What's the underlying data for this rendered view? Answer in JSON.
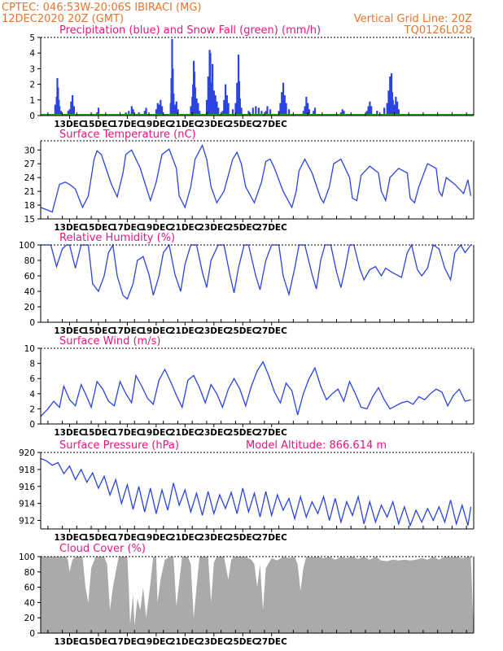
{
  "header": {
    "source_station": "CPTEC:  046:53W-20:06S  IBIRACI (MG)",
    "run_time": "12DEC2020 20Z (GMT)",
    "grid_note": "Vertical Grid Line: 20Z",
    "model": "TQ0126L028"
  },
  "dates": [
    "13DEC",
    "15DEC",
    "17DEC",
    "19DEC",
    "21DEC",
    "23DEC",
    "25DEC",
    "27DEC"
  ],
  "colors": {
    "line": "#2a44e0",
    "snow": "#1aa81a",
    "cloud": "#aaaaaa",
    "title": "#e8157f",
    "header": "#e8742c"
  },
  "chart_data": [
    {
      "id": "precip",
      "type": "bar",
      "title": "Precipitation (blue) and Snow Fall (green) (mm/h)",
      "ylim": [
        0,
        5
      ],
      "yticks": [
        0,
        1,
        2,
        3,
        4,
        5
      ],
      "x_unit": "days since start of window (12DEC 20Z = 0)",
      "bars": [
        [
          1.0,
          0.7
        ],
        [
          1.1,
          1.2
        ],
        [
          1.15,
          2.4
        ],
        [
          1.2,
          1.8
        ],
        [
          1.25,
          1.0
        ],
        [
          1.3,
          0.6
        ],
        [
          1.4,
          0.3
        ],
        [
          1.9,
          0.3
        ],
        [
          2.0,
          0.4
        ],
        [
          2.1,
          0.9
        ],
        [
          2.2,
          1.3
        ],
        [
          2.3,
          0.6
        ],
        [
          3.9,
          0.2
        ],
        [
          4.0,
          0.5
        ],
        [
          5.9,
          0.2
        ],
        [
          6.1,
          0.3
        ],
        [
          6.3,
          0.6
        ],
        [
          6.4,
          0.4
        ],
        [
          6.8,
          0.2
        ],
        [
          7.2,
          0.3
        ],
        [
          7.3,
          0.5
        ],
        [
          8.0,
          0.4
        ],
        [
          8.1,
          0.8
        ],
        [
          8.2,
          0.7
        ],
        [
          8.3,
          1.0
        ],
        [
          8.4,
          0.6
        ],
        [
          9.0,
          0.8
        ],
        [
          9.05,
          2.4
        ],
        [
          9.1,
          4.9
        ],
        [
          9.15,
          3.0
        ],
        [
          9.2,
          1.4
        ],
        [
          9.3,
          0.7
        ],
        [
          9.4,
          0.9
        ],
        [
          9.5,
          0.4
        ],
        [
          10.4,
          0.6
        ],
        [
          10.5,
          1.2
        ],
        [
          10.55,
          2.0
        ],
        [
          10.6,
          3.5
        ],
        [
          10.65,
          2.8
        ],
        [
          10.7,
          1.8
        ],
        [
          10.8,
          1.1
        ],
        [
          10.9,
          0.8
        ],
        [
          11.0,
          0.3
        ],
        [
          11.5,
          1.0
        ],
        [
          11.6,
          2.5
        ],
        [
          11.7,
          4.2
        ],
        [
          11.75,
          4.0
        ],
        [
          11.8,
          2.1
        ],
        [
          11.9,
          3.3
        ],
        [
          12.0,
          1.6
        ],
        [
          12.1,
          1.3
        ],
        [
          12.2,
          0.9
        ],
        [
          12.3,
          0.5
        ],
        [
          12.6,
          0.3
        ],
        [
          12.7,
          1.0
        ],
        [
          12.8,
          2.0
        ],
        [
          12.9,
          1.3
        ],
        [
          13.0,
          0.8
        ],
        [
          13.3,
          0.4
        ],
        [
          13.5,
          0.8
        ],
        [
          13.6,
          2.1
        ],
        [
          13.7,
          3.9
        ],
        [
          13.75,
          2.2
        ],
        [
          13.8,
          1.1
        ],
        [
          13.9,
          0.5
        ],
        [
          14.4,
          0.3
        ],
        [
          14.7,
          0.5
        ],
        [
          14.9,
          0.6
        ],
        [
          15.1,
          0.5
        ],
        [
          15.3,
          0.3
        ],
        [
          15.6,
          0.3
        ],
        [
          15.7,
          0.6
        ],
        [
          15.9,
          0.4
        ],
        [
          16.5,
          0.3
        ],
        [
          16.6,
          0.8
        ],
        [
          16.7,
          1.5
        ],
        [
          16.8,
          2.1
        ],
        [
          16.9,
          1.3
        ],
        [
          17.0,
          0.8
        ],
        [
          17.2,
          0.4
        ],
        [
          18.2,
          0.3
        ],
        [
          18.3,
          0.6
        ],
        [
          18.4,
          1.2
        ],
        [
          18.5,
          0.8
        ],
        [
          18.6,
          0.4
        ],
        [
          18.9,
          0.3
        ],
        [
          19.0,
          0.5
        ],
        [
          20.8,
          0.2
        ],
        [
          20.9,
          0.4
        ],
        [
          21.0,
          0.3
        ],
        [
          22.6,
          0.3
        ],
        [
          22.7,
          0.6
        ],
        [
          22.8,
          0.9
        ],
        [
          22.9,
          0.6
        ],
        [
          23.3,
          0.3
        ],
        [
          23.8,
          0.5
        ],
        [
          24.0,
          0.8
        ],
        [
          24.1,
          1.6
        ],
        [
          24.2,
          2.5
        ],
        [
          24.3,
          2.7
        ],
        [
          24.35,
          1.5
        ],
        [
          24.4,
          1.0
        ],
        [
          24.5,
          0.7
        ],
        [
          24.6,
          1.2
        ],
        [
          24.7,
          0.9
        ],
        [
          24.8,
          0.4
        ]
      ],
      "snow": 0
    },
    {
      "id": "temperature",
      "type": "line",
      "title": "Surface Temperature (nC)",
      "ylim": [
        15,
        32
      ],
      "yticks": [
        15,
        18,
        21,
        24,
        27,
        30
      ],
      "x": [
        0,
        0.8,
        1.3,
        1.7,
        2.0,
        2.4,
        2.9,
        3.3,
        3.7,
        3.9,
        4.2,
        4.9,
        5.3,
        5.7,
        5.9,
        6.3,
        6.9,
        7.4,
        7.6,
        8.0,
        8.4,
        8.9,
        9.4,
        9.6,
        10.0,
        10.4,
        10.7,
        11.2,
        11.5,
        11.8,
        12.2,
        12.7,
        13.3,
        13.6,
        13.9,
        14.2,
        14.8,
        15.3,
        15.6,
        15.9,
        16.2,
        16.8,
        17.4,
        17.7,
        17.9,
        18.3,
        18.8,
        19.4,
        19.6,
        20.0,
        20.3,
        20.8,
        21.4,
        21.6,
        21.9,
        22.2,
        22.8,
        23.4,
        23.6,
        23.9,
        24.2,
        24.8,
        25.4,
        25.6,
        25.9,
        26.2,
        26.8,
        27.4,
        27.6,
        27.8,
        28.1,
        28.7,
        29.3,
        29.6,
        29.8
      ],
      "y": [
        17.5,
        16.5,
        22.5,
        23,
        22.5,
        21.5,
        17.5,
        20,
        28,
        29.8,
        29,
        22.5,
        19.8,
        25,
        29,
        30,
        26,
        21,
        19,
        23,
        29,
        30.2,
        26,
        20,
        17.5,
        22,
        28,
        31,
        28,
        22,
        18.5,
        21,
        28,
        29.5,
        27,
        22,
        18.5,
        23,
        27.5,
        28,
        26,
        21,
        17.5,
        21,
        25.5,
        28,
        25,
        19.5,
        18.5,
        22,
        27,
        28,
        24,
        19.5,
        19,
        24.5,
        26.5,
        25,
        21,
        19,
        24,
        26,
        25,
        19.5,
        18.5,
        22,
        27,
        26,
        21,
        20,
        24,
        22.5,
        20.5,
        23.5,
        20
      ]
    },
    {
      "id": "humidity",
      "type": "line",
      "title": "Relative Humidity (%)",
      "ylim": [
        0,
        100
      ],
      "yticks": [
        0,
        20,
        40,
        60,
        80,
        100
      ],
      "x": [
        0,
        0.4,
        0.7,
        1.1,
        1.5,
        1.8,
        2.0,
        2.4,
        2.8,
        3.3,
        3.6,
        4.0,
        4.4,
        4.7,
        5.0,
        5.3,
        5.7,
        6.0,
        6.4,
        6.7,
        7.1,
        7.5,
        7.8,
        8.2,
        8.5,
        8.9,
        9.3,
        9.7,
        10.0,
        10.4,
        10.8,
        11.2,
        11.5,
        11.8,
        12.3,
        12.7,
        13.1,
        13.4,
        13.7,
        14.1,
        14.4,
        14.9,
        15.2,
        15.6,
        16.0,
        16.5,
        16.8,
        17.2,
        17.6,
        17.9,
        18.3,
        18.8,
        19.1,
        19.4,
        19.7,
        20.1,
        20.5,
        20.8,
        21.1,
        21.4,
        21.7,
        22.1,
        22.4,
        22.8,
        23.2,
        23.6,
        23.9,
        24.3,
        24.6,
        25.0,
        25.4,
        25.7,
        26.1,
        26.4,
        26.8,
        27.2,
        27.6,
        28.0,
        28.4,
        28.7,
        29.1,
        29.4,
        29.8
      ],
      "y": [
        100,
        100,
        100,
        72,
        95,
        100,
        100,
        70,
        100,
        100,
        50,
        40,
        60,
        90,
        100,
        60,
        35,
        30,
        50,
        80,
        85,
        62,
        35,
        60,
        90,
        100,
        62,
        40,
        75,
        100,
        100,
        65,
        45,
        80,
        100,
        100,
        62,
        38,
        70,
        100,
        100,
        60,
        42,
        80,
        100,
        100,
        60,
        36,
        70,
        100,
        100,
        62,
        43,
        80,
        100,
        100,
        65,
        45,
        70,
        100,
        100,
        70,
        55,
        68,
        72,
        60,
        70,
        65,
        62,
        58,
        90,
        100,
        68,
        60,
        70,
        100,
        95,
        70,
        55,
        90,
        100,
        90,
        100
      ]
    },
    {
      "id": "wind",
      "type": "line",
      "title": "Surface Wind (m/s)",
      "ylim": [
        0,
        10
      ],
      "yticks": [
        0,
        2,
        4,
        6,
        8,
        10
      ],
      "x": [
        0,
        0.5,
        0.9,
        1.3,
        1.6,
        2.0,
        2.4,
        2.8,
        3.1,
        3.5,
        3.9,
        4.3,
        4.7,
        5.1,
        5.5,
        5.9,
        6.3,
        6.6,
        7.0,
        7.4,
        7.8,
        8.2,
        8.6,
        9.0,
        9.4,
        9.8,
        10.2,
        10.6,
        11.0,
        11.4,
        11.8,
        12.2,
        12.6,
        13.0,
        13.4,
        13.8,
        14.2,
        14.6,
        15.0,
        15.4,
        15.8,
        16.2,
        16.6,
        17.0,
        17.4,
        17.8,
        18.2,
        18.6,
        19.0,
        19.4,
        19.8,
        20.2,
        20.6,
        21.0,
        21.4,
        21.8,
        22.2,
        22.6,
        23.0,
        23.4,
        23.8,
        24.2,
        24.6,
        25.0,
        25.4,
        25.8,
        26.2,
        26.6,
        27.0,
        27.4,
        27.8,
        28.2,
        28.6,
        29.0,
        29.4,
        29.8
      ],
      "y": [
        1.0,
        2.0,
        3.0,
        2.2,
        5.0,
        3.2,
        2.4,
        5.2,
        4.0,
        2.2,
        5.6,
        4.6,
        3.0,
        2.4,
        5.6,
        4.0,
        2.8,
        6.4,
        5.0,
        3.4,
        2.6,
        5.8,
        7.2,
        5.6,
        3.8,
        2.2,
        5.8,
        6.4,
        4.8,
        2.8,
        5.2,
        4.0,
        2.2,
        4.6,
        6.0,
        4.6,
        2.4,
        5.0,
        7.0,
        8.2,
        6.4,
        4.2,
        2.8,
        5.4,
        4.4,
        1.2,
        4.0,
        6.0,
        7.4,
        5.0,
        3.2,
        4.0,
        4.6,
        3.0,
        5.6,
        4.0,
        2.2,
        2.0,
        3.6,
        4.8,
        3.2,
        2.0,
        2.4,
        2.8,
        3.0,
        2.6,
        3.6,
        3.2,
        4.0,
        4.6,
        4.2,
        2.4,
        3.8,
        4.6,
        3.0,
        3.2
      ]
    },
    {
      "id": "pressure",
      "type": "line",
      "title": "Surface Pressure (hPa)",
      "annotation": "Model Altitude: 866.614 m",
      "ylim": [
        911,
        920
      ],
      "yticks": [
        912,
        914,
        916,
        918,
        920
      ],
      "x": [
        0,
        0.4,
        0.8,
        1.2,
        1.6,
        2.0,
        2.4,
        2.8,
        3.2,
        3.6,
        4.0,
        4.4,
        4.8,
        5.2,
        5.6,
        6.0,
        6.4,
        6.8,
        7.2,
        7.6,
        8.0,
        8.4,
        8.8,
        9.2,
        9.6,
        10.0,
        10.4,
        10.8,
        11.2,
        11.6,
        12.0,
        12.4,
        12.8,
        13.2,
        13.6,
        14.0,
        14.4,
        14.8,
        15.2,
        15.6,
        16.0,
        16.4,
        16.8,
        17.2,
        17.6,
        18.0,
        18.4,
        18.8,
        19.2,
        19.6,
        20.0,
        20.4,
        20.8,
        21.2,
        21.6,
        22.0,
        22.4,
        22.8,
        23.2,
        23.6,
        24.0,
        24.4,
        24.8,
        25.2,
        25.6,
        26.0,
        26.4,
        26.8,
        27.2,
        27.6,
        28.0,
        28.4,
        28.8,
        29.2,
        29.6,
        29.8
      ],
      "y": [
        919.3,
        919.0,
        918.5,
        918.8,
        917.5,
        918.4,
        916.8,
        918.0,
        916.5,
        917.6,
        915.8,
        917.2,
        915.0,
        916.8,
        914.0,
        916.2,
        913.3,
        916.0,
        913.0,
        915.8,
        912.8,
        915.6,
        913.2,
        916.4,
        913.8,
        915.6,
        913.0,
        915.2,
        912.6,
        915.4,
        912.8,
        915.0,
        913.4,
        915.3,
        912.8,
        915.8,
        913.0,
        915.2,
        912.4,
        915.4,
        912.6,
        915.0,
        913.2,
        914.6,
        912.2,
        914.8,
        912.4,
        914.2,
        912.8,
        914.8,
        912.0,
        914.6,
        911.8,
        914.2,
        912.6,
        914.8,
        911.6,
        914.2,
        911.8,
        913.8,
        912.4,
        914.2,
        911.6,
        913.6,
        911.4,
        913.2,
        911.8,
        913.4,
        912.0,
        913.6,
        911.8,
        914.4,
        911.6,
        913.8,
        911.4,
        913.6
      ]
    },
    {
      "id": "cloud",
      "type": "area",
      "title": "Cloud Cover (%)",
      "ylim": [
        0,
        100
      ],
      "yticks": [
        0,
        20,
        40,
        60,
        80,
        100
      ],
      "x": [
        0,
        1.8,
        1.9,
        2.0,
        2.2,
        2.4,
        2.9,
        3.1,
        3.3,
        3.5,
        3.8,
        4.4,
        4.6,
        4.8,
        5.0,
        5.4,
        6.0,
        6.1,
        6.2,
        6.4,
        6.5,
        6.7,
        6.9,
        7.1,
        7.3,
        7.6,
        7.8,
        8.0,
        8.1,
        8.3,
        8.6,
        9.0,
        9.2,
        9.4,
        9.8,
        10.2,
        10.4,
        10.6,
        10.8,
        11.0,
        11.3,
        11.6,
        11.8,
        12.0,
        12.2,
        12.4,
        12.7,
        13.0,
        13.2,
        13.4,
        13.8,
        14.2,
        14.6,
        14.8,
        15.0,
        15.2,
        15.4,
        15.6,
        16.0,
        16.4,
        16.8,
        17.2,
        17.6,
        17.8,
        18.0,
        18.2,
        18.4,
        18.8,
        19.2,
        19.6,
        20.0,
        20.4,
        20.8,
        21.2,
        21.6,
        22.0,
        22.4,
        22.8,
        23.2,
        23.6,
        24.0,
        24.4,
        24.8,
        25.2,
        25.6,
        26.0,
        26.4,
        26.8,
        27.2,
        27.6,
        28.0,
        28.4,
        28.8,
        29.2,
        29.6,
        29.8
      ],
      "y": [
        100,
        100,
        94,
        80,
        96,
        100,
        100,
        60,
        40,
        85,
        100,
        100,
        90,
        30,
        60,
        100,
        100,
        60,
        12,
        50,
        10,
        45,
        30,
        60,
        20,
        65,
        100,
        100,
        40,
        70,
        96,
        100,
        100,
        35,
        100,
        100,
        90,
        20,
        60,
        100,
        100,
        100,
        40,
        92,
        100,
        100,
        100,
        70,
        96,
        100,
        100,
        100,
        96,
        90,
        60,
        90,
        30,
        85,
        98,
        95,
        100,
        98,
        100,
        90,
        55,
        85,
        100,
        99,
        100,
        98,
        100,
        96,
        100,
        98,
        100,
        97,
        100,
        96,
        100,
        95,
        94,
        96,
        95,
        96,
        95,
        96,
        98,
        96,
        100,
        96,
        100,
        99,
        100,
        98,
        100,
        100
      ]
    }
  ]
}
